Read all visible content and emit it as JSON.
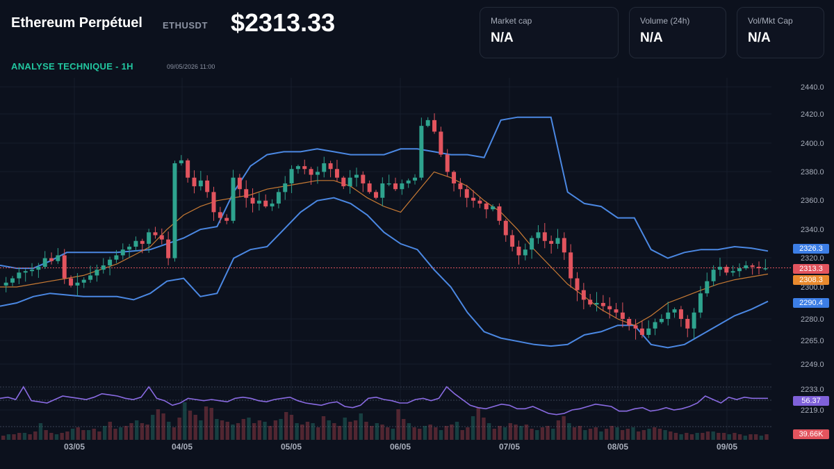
{
  "header": {
    "title": "Ethereum Perpétuel",
    "symbol": "ETHUSDT",
    "price": "$2313.33",
    "subtitle": "ANALYSE TECHNIQUE - 1H",
    "datetime": "09/05/2026 11:00"
  },
  "stats": [
    {
      "label": "Market cap",
      "value": "N/A"
    },
    {
      "label": "Volume (24h)",
      "value": "N/A"
    },
    {
      "label": "Vol/Mkt Cap",
      "value": "N/A"
    }
  ],
  "chart_data": {
    "type": "candlestick",
    "y_axis_ticks": [
      "2440.0",
      "2420.0",
      "2400.0",
      "2380.0",
      "2360.0",
      "2340.0",
      "2320.0",
      "2300.0",
      "2280.0",
      "2265.0",
      "2249.0",
      "2233.0",
      "2219.0"
    ],
    "x_axis_ticks": [
      "03/05",
      "04/05",
      "05/05",
      "06/05",
      "07/05",
      "08/05",
      "09/05"
    ],
    "price_tags": {
      "upper_band": "2326.3",
      "last_price": "2313.3",
      "middle_band": "2308.3",
      "lower_band": "2290.4",
      "rsi": "56.37",
      "volume": "39.66K"
    },
    "close_path": [
      2303,
      2306,
      2310,
      2311,
      2312,
      2314,
      2320,
      2318,
      2322,
      2306,
      2301,
      2303,
      2305,
      2308,
      2312,
      2315,
      2319,
      2322,
      2326,
      2328,
      2332,
      2330,
      2338,
      2336,
      2333,
      2320,
      2386,
      2388,
      2376,
      2370,
      2374,
      2366,
      2352,
      2348,
      2346,
      2376,
      2368,
      2362,
      2358,
      2360,
      2356,
      2358,
      2366,
      2372,
      2382,
      2384,
      2382,
      2378,
      2380,
      2386,
      2382,
      2376,
      2370,
      2376,
      2378,
      2372,
      2366,
      2362,
      2372,
      2372,
      2368,
      2372,
      2374,
      2376,
      2412,
      2416,
      2408,
      2392,
      2380,
      2372,
      2368,
      2362,
      2360,
      2358,
      2354,
      2356,
      2346,
      2336,
      2328,
      2322,
      2326,
      2334,
      2338,
      2332,
      2330,
      2334,
      2324,
      2306,
      2298,
      2292,
      2289,
      2290,
      2288,
      2286,
      2284,
      2280,
      2276,
      2274,
      2270,
      2274,
      2278,
      2280,
      2284,
      2286,
      2280,
      2274,
      2284,
      2296,
      2304,
      2312,
      2314,
      2310,
      2311,
      2313,
      2315,
      2314,
      2313,
      2313
    ],
    "bollinger": {
      "upper": [
        2315,
        2313,
        2313,
        2318,
        2324,
        2324,
        2324,
        2324,
        2325,
        2326,
        2330,
        2334,
        2340,
        2342,
        2366,
        2384,
        2392,
        2394,
        2394,
        2396,
        2394,
        2392,
        2392,
        2392,
        2396,
        2396,
        2394,
        2392,
        2392,
        2390,
        2416,
        2418,
        2418,
        2418,
        2366,
        2358,
        2356,
        2348,
        2348,
        2326,
        2320,
        2324,
        2326,
        2326,
        2328,
        2327,
        2325
      ],
      "middle": [
        2300,
        2300,
        2302,
        2304,
        2306,
        2308,
        2312,
        2316,
        2322,
        2328,
        2340,
        2350,
        2356,
        2360,
        2362,
        2364,
        2368,
        2370,
        2372,
        2374,
        2374,
        2370,
        2362,
        2356,
        2352,
        2366,
        2380,
        2376,
        2370,
        2360,
        2352,
        2340,
        2326,
        2314,
        2302,
        2294,
        2286,
        2280,
        2276,
        2282,
        2290,
        2294,
        2298,
        2302,
        2305,
        2307,
        2309
      ],
      "lower": [
        2288,
        2290,
        2294,
        2296,
        2295,
        2294,
        2294,
        2294,
        2292,
        2296,
        2304,
        2306,
        2294,
        2296,
        2320,
        2326,
        2328,
        2340,
        2352,
        2360,
        2362,
        2358,
        2350,
        2338,
        2330,
        2326,
        2312,
        2300,
        2284,
        2272,
        2268,
        2266,
        2264,
        2263,
        2264,
        2270,
        2272,
        2276,
        2276,
        2264,
        2262,
        2264,
        2270,
        2276,
        2282,
        2286,
        2291
      ]
    },
    "rsi": [
      56,
      57,
      55,
      66,
      54,
      53,
      52,
      55,
      58,
      57,
      56,
      55,
      57,
      60,
      59,
      58,
      56,
      55,
      57,
      66,
      56,
      54,
      50,
      52,
      56,
      55,
      54,
      55,
      54,
      53,
      56,
      57,
      56,
      54,
      53,
      55,
      56,
      57,
      54,
      52,
      51,
      50,
      52,
      53,
      49,
      48,
      50,
      56,
      57,
      55,
      54,
      52,
      52,
      55,
      56,
      54,
      56,
      66,
      60,
      55,
      50,
      48,
      47,
      49,
      51,
      50,
      47,
      47,
      49,
      46,
      43,
      42,
      43,
      46,
      47,
      49,
      51,
      50,
      49,
      45,
      45,
      47,
      48,
      45,
      46,
      48,
      46,
      47,
      49,
      52,
      58,
      55,
      52,
      57,
      55,
      57,
      56,
      56,
      56
    ],
    "volume_heights": [
      3,
      4,
      4,
      5,
      5,
      4,
      6,
      12,
      7,
      5,
      4,
      5,
      6,
      8,
      9,
      7,
      7,
      8,
      6,
      10,
      13,
      8,
      9,
      10,
      12,
      14,
      12,
      11,
      18,
      22,
      19,
      13,
      9,
      16,
      27,
      21,
      18,
      14,
      24,
      23,
      15,
      14,
      13,
      11,
      12,
      15,
      16,
      12,
      14,
      13,
      10,
      14,
      15,
      20,
      18,
      12,
      11,
      13,
      12,
      9,
      17,
      14,
      12,
      10,
      16,
      13,
      14,
      19,
      13,
      10,
      12,
      11,
      9,
      8,
      22,
      15,
      12,
      9,
      8,
      10,
      11,
      9,
      7,
      10,
      11,
      13,
      7,
      9,
      17,
      23,
      16,
      12,
      8,
      10,
      9,
      12,
      11,
      10,
      11,
      8,
      7,
      9,
      10,
      8,
      14,
      17,
      12,
      9,
      10,
      7,
      8,
      9,
      6,
      8,
      10,
      9,
      7,
      8,
      9,
      6,
      7,
      8,
      9,
      8,
      7,
      6,
      5,
      4,
      5,
      4,
      5,
      5,
      6,
      6,
      5,
      5,
      4,
      5,
      4,
      3,
      4,
      4,
      3,
      4
    ],
    "colors": {
      "bull": "#2ea38e",
      "bear": "#e2545e",
      "band": "#4b88e3",
      "middle_band": "#c97b34",
      "rsi_line": "#8a6be3",
      "last_price_line": "#e2545e",
      "tag_upper": "#3c7ee6",
      "tag_price": "#e2545e",
      "tag_middle": "#e98a2e",
      "tag_rsi": "#7f61d9",
      "tag_volume": "#e2545e"
    }
  }
}
